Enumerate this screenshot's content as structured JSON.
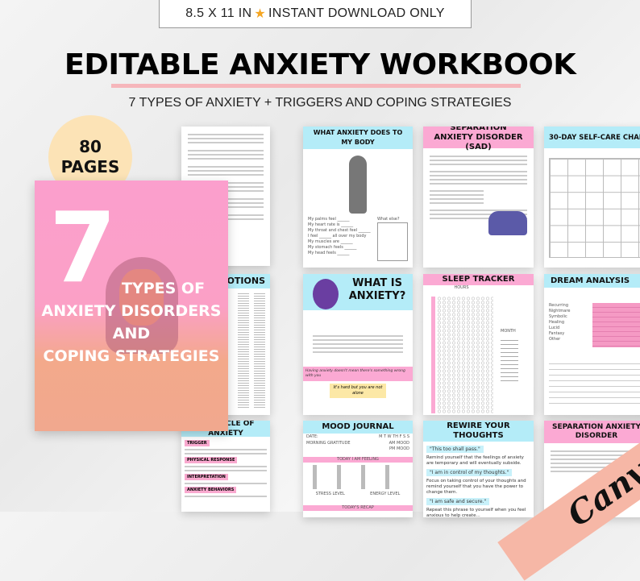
{
  "banner": {
    "size": "8.5 X 11 IN",
    "star_icon": "star-icon",
    "text": "INSTANT DOWNLOAD ONLY"
  },
  "title": "EDITABLE ANXIETY WORKBOOK",
  "subtitle": "7 TYPES OF ANXIETY + TRIGGERS AND COPING STRATEGIES",
  "badge": {
    "count": "80",
    "unit": "PAGES"
  },
  "cover": {
    "number": "7",
    "line1": "TYPES OF",
    "line2": "ANXIETY DISORDERS",
    "line3": "AND",
    "line4": "COPING STRATEGIES"
  },
  "colors": {
    "accent_pink": "#fba9d3",
    "accent_blue": "#b4ecf8",
    "badge": "#fce3b6",
    "canva_ribbon": "#f6b7a6"
  },
  "pages": {
    "emotions": "EMOTIONS",
    "cycle": {
      "title": "THE CYCLE OF ANXIETY",
      "sections": [
        "TRIGGER",
        "PHYSICAL RESPONSE",
        "INTERPRETATION",
        "ANXIETY BEHAVIORS"
      ]
    },
    "body": {
      "title": "WHAT ANXIETY DOES TO MY BODY",
      "what_else": "What else?",
      "prompts": [
        "My palms feel ______",
        "My heart rate is ______",
        "My throat and chest feel ______",
        "I feel ______ all over my body",
        "My muscles are ______",
        "My stomach feels ______",
        "My head feels ______"
      ]
    },
    "sad": {
      "title": "SEPARATION ANXIETY DISORDER (SAD)"
    },
    "selfcare": {
      "title": "30-DAY SELF-CARE CHALLENGE"
    },
    "what_is": {
      "title": "WHAT IS ANXIETY?",
      "quote1": "Having anxiety doesn't mean there's something wrong with you",
      "quote2": "It's hard but you are not alone"
    },
    "sleep": {
      "title": "SLEEP TRACKER",
      "hours": "HOURS",
      "month": "MONTH"
    },
    "dream": {
      "title": "DREAM ANALYSIS",
      "types": [
        "Recurring",
        "Nightmare",
        "Symbolic",
        "Healing",
        "Lucid",
        "Fantasy",
        "Other"
      ]
    },
    "mood": {
      "title": "MOOD JOURNAL",
      "date": "DATE:",
      "days": "M T W TH F S S",
      "gratitude": "MORNING GRATITUDE",
      "am": "AM MOOD",
      "pm": "PM MOOD",
      "feeling": "TODAY I AM FEELING",
      "stress": "STRESS LEVEL",
      "energy": "ENERGY LEVEL",
      "recap": "TODAY'S RECAP"
    },
    "rewire": {
      "title": "REWIRE YOUR THOUGHTS",
      "q1": "\"This too shall pass.\"",
      "t1": "Remind yourself that the feelings of anxiety are temporary and will eventually subside.",
      "q2": "\"I am in control of my thoughts.\"",
      "t2": "Focus on taking control of your thoughts and remind yourself that you have the power to change them.",
      "q3": "\"I am safe and secure.\"",
      "t3": "Repeat this phrase to yourself when you feel anxious to help create..."
    },
    "sad2": {
      "title": "SEPARATION ANXIETY DISORDER"
    }
  },
  "canva": "Canva"
}
